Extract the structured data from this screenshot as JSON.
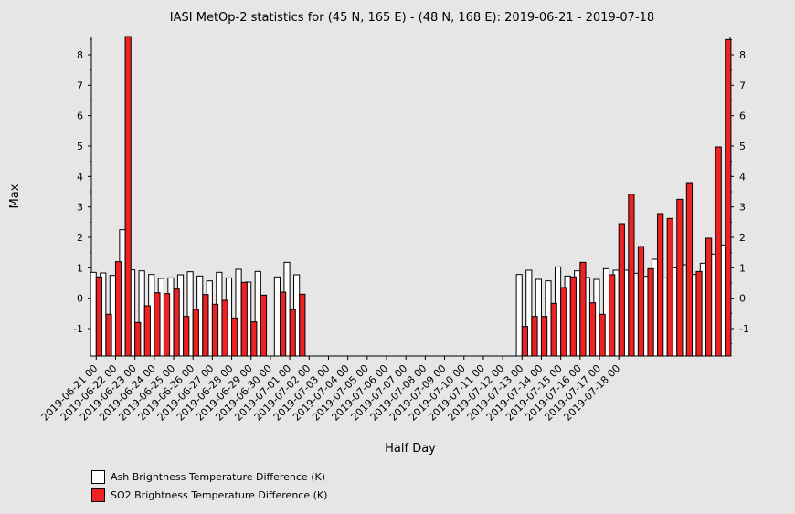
{
  "chart_data": {
    "type": "bar",
    "title": "IASI MetOp-2 statistics for (45 N, 165 E) - (48 N, 168 E): 2019-06-21 - 2019-07-18",
    "xlabel": "Half Day",
    "ylabel": "Max",
    "ylim": [
      -1.9,
      8.6
    ],
    "yticks": [
      -1,
      0,
      1,
      2,
      3,
      4,
      5,
      6,
      7,
      8
    ],
    "tick_labels": [
      "2019-06-21 00",
      "2019-06-22 00",
      "2019-06-23 00",
      "2019-06-24 00",
      "2019-06-25 00",
      "2019-06-26 00",
      "2019-06-27 00",
      "2019-06-28 00",
      "2019-06-29 00",
      "2019-06-30 00",
      "2019-07-01 00",
      "2019-07-02 00",
      "2019-07-03 00",
      "2019-07-04 00",
      "2019-07-05 00",
      "2019-07-06 00",
      "2019-07-07 00",
      "2019-07-08 00",
      "2019-07-09 00",
      "2019-07-10 00",
      "2019-07-11 00",
      "2019-07-12 00",
      "2019-07-13 00",
      "2019-07-14 00",
      "2019-07-15 00",
      "2019-07-16 00",
      "2019-07-17 00",
      "2019-07-18 00"
    ],
    "grid": false,
    "legend_position": "bottom-left",
    "series": [
      {
        "name": "Ash Brightness Temperature Difference (K)",
        "color": "#ffffff",
        "values": [
          0.85,
          0.83,
          0.75,
          2.25,
          0.93,
          0.9,
          0.78,
          0.65,
          0.67,
          0.77,
          0.87,
          0.73,
          0.57,
          0.85,
          0.67,
          0.95,
          0.53,
          0.88,
          null,
          0.7,
          1.18,
          0.77,
          null,
          null,
          null,
          null,
          null,
          null,
          null,
          null,
          null,
          null,
          null,
          null,
          null,
          null,
          null,
          null,
          null,
          null,
          null,
          null,
          null,
          null,
          0.78,
          0.92,
          0.62,
          0.57,
          1.03,
          0.73,
          0.9,
          0.68,
          0.62,
          0.97,
          0.92,
          0.92,
          0.82,
          0.72,
          1.28,
          0.67,
          1.0,
          1.1,
          0.78,
          1.15,
          1.45,
          1.75
        ]
      },
      {
        "name": "SO2 Brightness Temperature Difference (K)",
        "color": "#ee2222",
        "values": [
          0.7,
          -0.53,
          1.2,
          8.6,
          -0.8,
          -0.25,
          0.18,
          0.15,
          0.3,
          -0.6,
          -0.37,
          0.12,
          -0.2,
          -0.07,
          -0.65,
          0.52,
          -0.78,
          0.1,
          null,
          0.2,
          -0.38,
          0.13,
          null,
          null,
          null,
          null,
          null,
          null,
          null,
          null,
          null,
          null,
          null,
          null,
          null,
          null,
          null,
          null,
          null,
          null,
          null,
          null,
          null,
          null,
          -0.93,
          -0.6,
          -0.6,
          -0.17,
          0.35,
          0.7,
          1.18,
          -0.15,
          -0.53,
          0.77,
          2.45,
          3.42,
          1.7,
          0.97,
          2.78,
          2.62,
          3.25,
          3.8,
          0.88,
          1.97,
          4.97,
          8.5
        ]
      }
    ]
  },
  "legend": {
    "ash_label": "Ash Brightness Temperature Difference (K)",
    "so2_label": "SO2 Brightness Temperature Difference (K)"
  }
}
